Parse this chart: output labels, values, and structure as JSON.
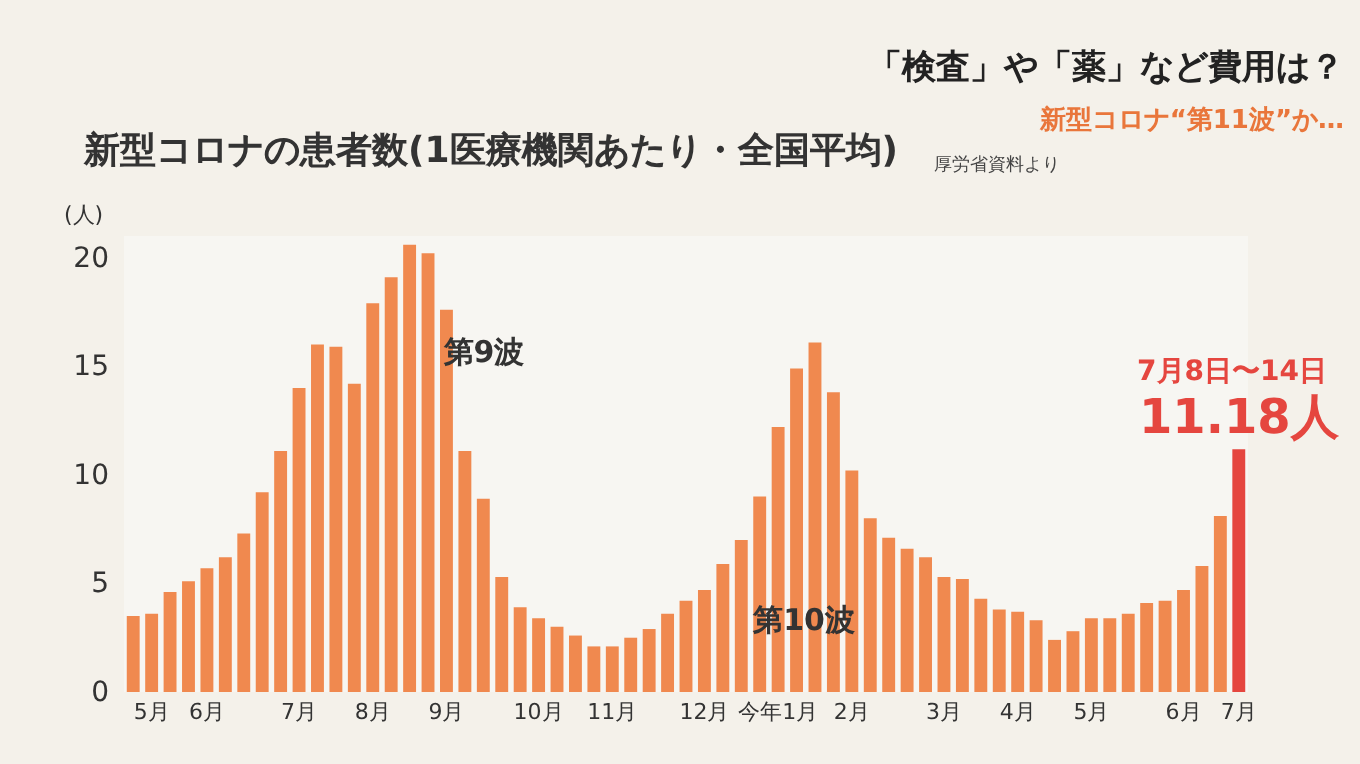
{
  "chart_data": {
    "type": "bar",
    "title": "新型コロナの患者数(1医療機関あたり・全国平均)",
    "ylabel": "(人)",
    "annotations": [
      "厚労省資料より",
      "第9波",
      "第10波",
      "7月8日〜14日",
      "「検査」や「薬」など費用は？",
      "新型コロナ“第11波”か…"
    ],
    "categories": [
      null,
      "5月",
      null,
      null,
      "6月",
      null,
      null,
      null,
      null,
      "7月",
      null,
      null,
      null,
      "8月",
      null,
      null,
      null,
      "9月",
      null,
      null,
      null,
      null,
      "10月",
      null,
      null,
      null,
      "11月",
      null,
      null,
      null,
      null,
      "12月",
      null,
      null,
      null,
      "今年1月",
      null,
      null,
      null,
      "2月",
      null,
      null,
      null,
      null,
      "3月",
      null,
      null,
      null,
      "4月",
      null,
      null,
      null,
      "5月",
      null,
      null,
      null,
      null,
      "6月",
      null,
      null,
      "7月"
    ],
    "values": [
      3.5,
      3.6,
      4.6,
      5.1,
      5.7,
      6.2,
      7.3,
      9.2,
      11.1,
      14.0,
      16.0,
      15.9,
      14.2,
      17.9,
      19.1,
      20.6,
      20.2,
      17.6,
      11.1,
      8.9,
      5.3,
      3.9,
      3.4,
      3.0,
      2.6,
      2.1,
      2.1,
      2.5,
      2.9,
      3.6,
      4.2,
      4.7,
      5.9,
      7.0,
      9.0,
      12.2,
      14.9,
      16.1,
      13.8,
      10.2,
      8.0,
      7.1,
      6.6,
      6.2,
      5.3,
      5.2,
      4.3,
      3.8,
      3.7,
      3.3,
      2.4,
      2.8,
      3.4,
      3.4,
      3.6,
      4.1,
      4.2,
      4.7,
      5.8,
      8.1,
      11.18
    ],
    "colors": [
      "#f0894f",
      "#f0894f",
      "#f0894f",
      "#f0894f",
      "#f0894f",
      "#f0894f",
      "#f0894f",
      "#f0894f",
      "#f0894f",
      "#f0894f",
      "#f0894f",
      "#f0894f",
      "#f0894f",
      "#f0894f",
      "#f0894f",
      "#f0894f",
      "#f0894f",
      "#f0894f",
      "#f0894f",
      "#f0894f",
      "#f0894f",
      "#f0894f",
      "#f0894f",
      "#f0894f",
      "#f0894f",
      "#f0894f",
      "#f0894f",
      "#f0894f",
      "#f0894f",
      "#f0894f",
      "#f0894f",
      "#f0894f",
      "#f0894f",
      "#f0894f",
      "#f0894f",
      "#f0894f",
      "#f0894f",
      "#f0894f",
      "#f0894f",
      "#f0894f",
      "#f0894f",
      "#f0894f",
      "#f0894f",
      "#f0894f",
      "#f0894f",
      "#f0894f",
      "#f0894f",
      "#f0894f",
      "#f0894f",
      "#f0894f",
      "#f0894f",
      "#f0894f",
      "#f0894f",
      "#f0894f",
      "#f0894f",
      "#f0894f",
      "#f0894f",
      "#f0894f",
      "#f0894f",
      "#f0894f",
      "#e5463f"
    ],
    "value_labels": [
      null,
      null,
      null,
      null,
      null,
      null,
      null,
      null,
      null,
      null,
      null,
      null,
      null,
      null,
      null,
      null,
      null,
      null,
      null,
      null,
      null,
      null,
      null,
      null,
      null,
      null,
      null,
      null,
      null,
      null,
      null,
      null,
      null,
      null,
      null,
      null,
      null,
      null,
      null,
      null,
      null,
      null,
      null,
      null,
      null,
      null,
      null,
      null,
      null,
      null,
      null,
      null,
      null,
      null,
      null,
      null,
      null,
      null,
      null,
      null,
      "11.18人"
    ],
    "ylim": [
      0,
      21
    ],
    "yticks": [
      0,
      5,
      10,
      15,
      20
    ],
    "grid": false
  }
}
